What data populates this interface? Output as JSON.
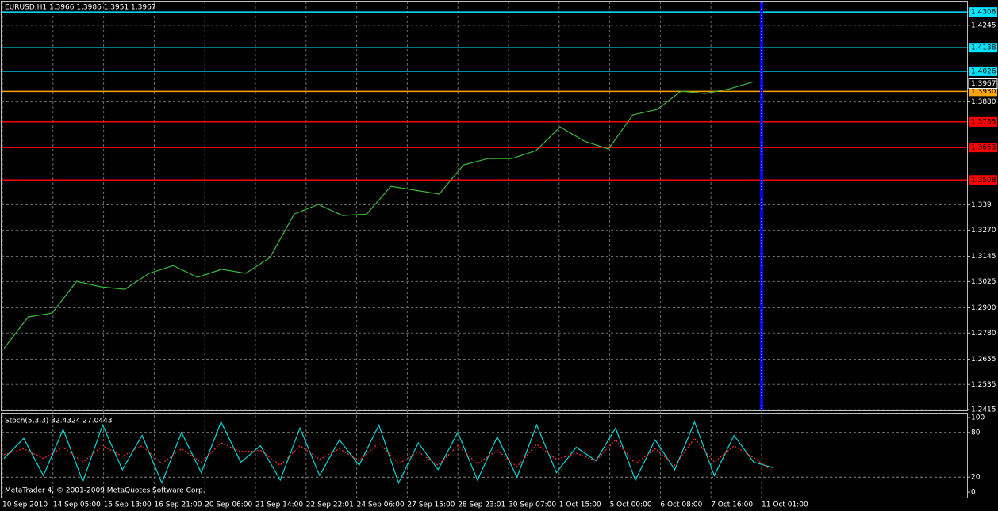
{
  "chart_data": [
    {
      "type": "line",
      "title": "EURUSD,H1  1.3966 1.3986 1.3951 1.3967",
      "color": "#3cb83c",
      "values": [
        1.2706,
        1.2856,
        1.2875,
        1.3026,
        1.3,
        1.2988,
        1.3064,
        1.3101,
        1.3045,
        1.3083,
        1.3064,
        1.3139,
        1.3346,
        1.3392,
        1.3339,
        1.3346,
        1.3478,
        1.346,
        1.3441,
        1.358,
        1.361,
        1.361,
        1.3648,
        1.3761,
        1.3693,
        1.3656,
        1.3818,
        1.3844,
        1.3931,
        1.392,
        1.3942,
        1.3976
      ],
      "x_labels": [
        "10 Sep 2010",
        "14 Sep 05:00",
        "15 Sep 13:00",
        "16 Sep 21:00",
        "20 Sep 06:00",
        "21 Sep 14:00",
        "22 Sep 22:01",
        "24 Sep 06:00",
        "27 Sep 15:00",
        "28 Sep 23:01",
        "30 Sep 07:00",
        "1 Oct 15:00",
        "5 Oct 00:00",
        "6 Oct 08:00",
        "7 Oct 16:00",
        "11 Oct 01:00"
      ],
      "ylim": [
        1.2404,
        1.4365
      ],
      "yticks": [
        1.4245,
        {
          "value": 1.388,
          "label": "1.3880"
        },
        1.339,
        {
          "value": 1.327,
          "label": "1.3270"
        },
        1.3145,
        1.3025,
        {
          "value": 1.29,
          "label": "1.2900"
        },
        {
          "value": 1.278,
          "label": "1.2780"
        },
        1.2655,
        1.2535,
        1.2415
      ],
      "levels": [
        {
          "value": 1.4308,
          "label": "1.4308",
          "color": "#00e5ff"
        },
        {
          "value": 1.4138,
          "label": "1.4138",
          "color": "#00e5ff"
        },
        {
          "value": 1.4026,
          "label": "1.4026",
          "color": "#00e5ff"
        },
        {
          "value": 1.393,
          "label": "1.3930",
          "color": "#ffa500"
        },
        {
          "value": 1.3785,
          "label": "1.3785",
          "color": "#ff0000"
        },
        {
          "value": 1.3663,
          "label": "1.3663",
          "color": "#ff0000"
        },
        {
          "value": 1.3508,
          "label": "1.3508",
          "color": "#ff0000"
        }
      ],
      "last_price": 1.3967,
      "grid": true
    },
    {
      "type": "line",
      "title": "Stoch(5,3,3) 32.4324 27.0443",
      "series": [
        {
          "name": "main",
          "color": "#00d8d8",
          "values": [
            45,
            72,
            22,
            84,
            14,
            90,
            30,
            76,
            12,
            80,
            26,
            94,
            40,
            62,
            16,
            86,
            22,
            70,
            36,
            90,
            12,
            66,
            30,
            80,
            16,
            74,
            20,
            90,
            26,
            60,
            42,
            86,
            16,
            70,
            30,
            94,
            22,
            76,
            40,
            32.4324
          ]
        },
        {
          "name": "signal",
          "color": "#ff3030",
          "values": [
            50,
            58,
            45,
            60,
            40,
            62,
            48,
            62,
            38,
            58,
            40,
            66,
            54,
            56,
            36,
            62,
            44,
            58,
            42,
            66,
            38,
            54,
            36,
            62,
            38,
            56,
            34,
            64,
            44,
            52,
            42,
            70,
            38,
            58,
            36,
            72,
            40,
            62,
            46,
            27.0443
          ]
        }
      ],
      "ylim": [
        0,
        100
      ],
      "yticks": [
        100,
        80,
        20,
        0
      ],
      "grid_levels": [
        80,
        20
      ]
    }
  ],
  "footer": "MetaTrader 4, © 2001-2009 MetaQuotes Software Corp."
}
